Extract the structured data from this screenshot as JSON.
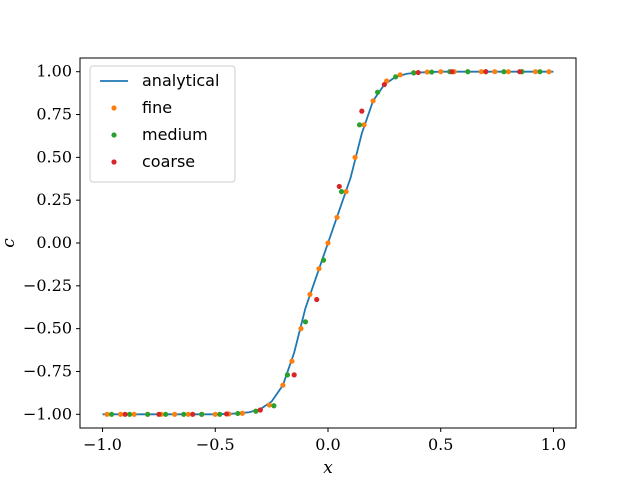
{
  "chart_data": {
    "type": "line",
    "title": "",
    "xlabel": "x",
    "ylabel": "c",
    "xlim": [
      -1.1,
      1.1
    ],
    "ylim": [
      -1.08,
      1.08
    ],
    "xticks": [
      -1.0,
      -0.5,
      0.0,
      0.5,
      1.0
    ],
    "xtick_labels": [
      "−1.0",
      "−0.5",
      "0.0",
      "0.5",
      "1.0"
    ],
    "yticks": [
      -1.0,
      -0.75,
      -0.5,
      -0.25,
      0.0,
      0.25,
      0.5,
      0.75,
      1.0
    ],
    "ytick_labels": [
      "−1.00",
      "−0.75",
      "−0.50",
      "−0.25",
      "0.00",
      "0.25",
      "0.50",
      "0.75",
      "1.00"
    ],
    "grid": false,
    "legend_position": "top-left",
    "series": [
      {
        "name": "analytical",
        "style": "line",
        "color": "#1f77b4",
        "x": [
          -1.0,
          -0.9,
          -0.8,
          -0.7,
          -0.6,
          -0.5,
          -0.45,
          -0.4,
          -0.35,
          -0.3,
          -0.25,
          -0.2,
          -0.15,
          -0.1,
          -0.05,
          0.0,
          0.05,
          0.1,
          0.15,
          0.2,
          0.25,
          0.3,
          0.35,
          0.4,
          0.45,
          0.5,
          0.6,
          0.7,
          0.8,
          0.9,
          1.0
        ],
        "y": [
          -1.0,
          -1.0,
          -1.0,
          -1.0,
          -1.0,
          -1.0,
          -0.998,
          -0.995,
          -0.988,
          -0.97,
          -0.925,
          -0.83,
          -0.64,
          -0.38,
          -0.19,
          0.0,
          0.19,
          0.38,
          0.64,
          0.83,
          0.925,
          0.97,
          0.988,
          0.995,
          0.998,
          1.0,
          1.0,
          1.0,
          1.0,
          1.0,
          1.0
        ]
      },
      {
        "name": "fine",
        "style": "markers",
        "color": "#ff7f0e",
        "x": [
          -0.98,
          -0.92,
          -0.86,
          -0.8,
          -0.74,
          -0.68,
          -0.62,
          -0.56,
          -0.5,
          -0.44,
          -0.38,
          -0.32,
          -0.26,
          -0.2,
          -0.16,
          -0.12,
          -0.08,
          -0.04,
          0.0,
          0.04,
          0.08,
          0.12,
          0.16,
          0.2,
          0.26,
          0.32,
          0.38,
          0.44,
          0.5,
          0.56,
          0.62,
          0.68,
          0.74,
          0.8,
          0.86,
          0.92,
          0.98
        ],
        "y": [
          -1.0,
          -1.0,
          -1.0,
          -1.0,
          -1.0,
          -1.0,
          -1.0,
          -1.0,
          -1.0,
          -0.998,
          -0.994,
          -0.982,
          -0.946,
          -0.83,
          -0.69,
          -0.5,
          -0.3,
          -0.15,
          0.0,
          0.15,
          0.3,
          0.5,
          0.69,
          0.83,
          0.946,
          0.982,
          0.994,
          0.998,
          1.0,
          1.0,
          1.0,
          1.0,
          1.0,
          1.0,
          1.0,
          1.0,
          1.0
        ]
      },
      {
        "name": "medium",
        "style": "markers",
        "color": "#2ca02c",
        "x": [
          -0.96,
          -0.88,
          -0.8,
          -0.72,
          -0.64,
          -0.56,
          -0.48,
          -0.4,
          -0.32,
          -0.24,
          -0.18,
          -0.1,
          -0.02,
          0.06,
          0.14,
          0.22,
          0.3,
          0.38,
          0.46,
          0.54,
          0.62,
          0.7,
          0.78,
          0.86,
          0.94
        ],
        "y": [
          -1.0,
          -1.0,
          -1.0,
          -1.0,
          -1.0,
          -1.0,
          -1.0,
          -0.995,
          -0.982,
          -0.95,
          -0.77,
          -0.46,
          -0.1,
          0.3,
          0.69,
          0.88,
          0.97,
          0.993,
          0.998,
          1.0,
          1.0,
          1.0,
          1.0,
          1.0,
          1.0
        ]
      },
      {
        "name": "coarse",
        "style": "markers",
        "color": "#d62728",
        "x": [
          -0.9,
          -0.75,
          -0.6,
          -0.45,
          -0.3,
          -0.15,
          -0.05,
          0.05,
          0.15,
          0.25,
          0.4,
          0.55,
          0.7,
          0.85
        ],
        "y": [
          -1.0,
          -1.0,
          -1.0,
          -0.998,
          -0.975,
          -0.77,
          -0.33,
          0.33,
          0.77,
          0.925,
          0.995,
          1.0,
          1.0,
          1.0
        ]
      }
    ]
  }
}
